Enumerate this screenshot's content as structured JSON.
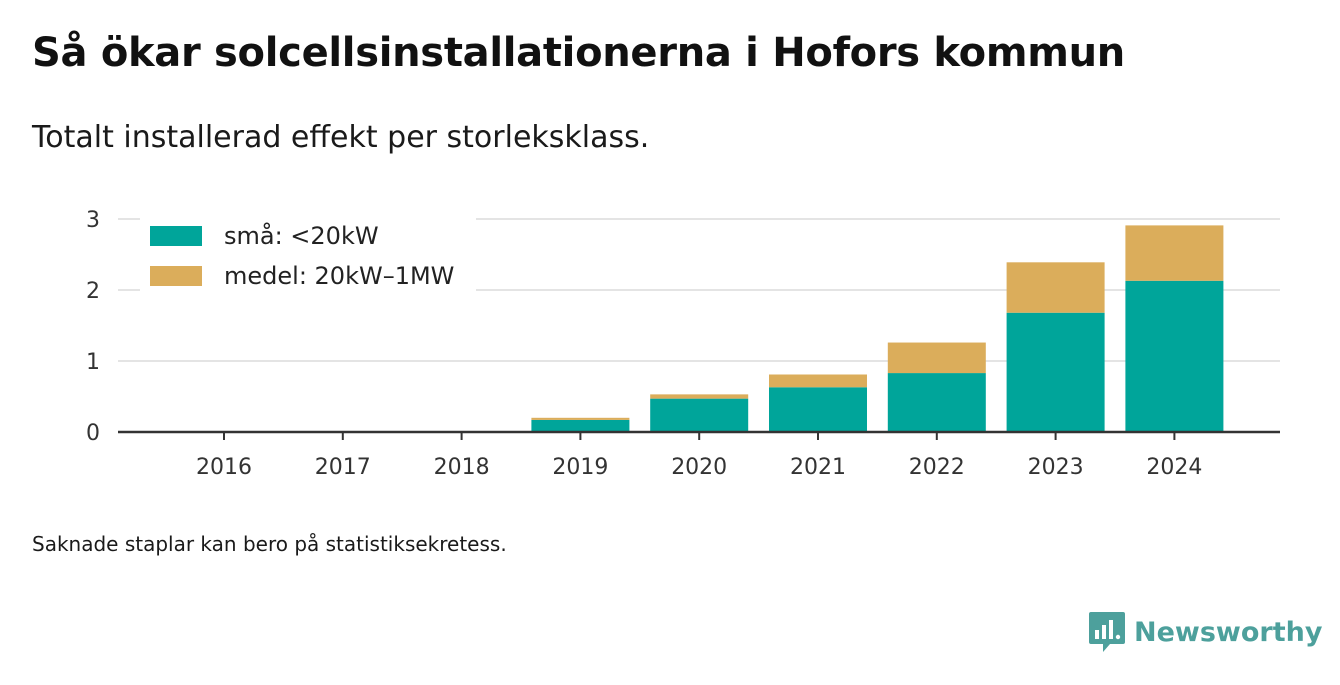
{
  "title": "Så ökar solcellsinstallationerna i Hofors kommun",
  "subtitle": "Totalt installerad effekt per storleksklass.",
  "note": "Saknade staplar kan bero på statistiksekretess.",
  "brand": {
    "name": "Newsworthy",
    "icon": "newsworthy-logo-icon",
    "color": "#4da09c"
  },
  "chart_data": {
    "type": "bar",
    "stacked": true,
    "categories": [
      "2016",
      "2017",
      "2018",
      "2019",
      "2020",
      "2021",
      "2022",
      "2023",
      "2024"
    ],
    "series": [
      {
        "name": "små: <20kW",
        "color": "#00a59a",
        "values": [
          0,
          0,
          0,
          0.17,
          0.47,
          0.63,
          0.83,
          1.68,
          2.13
        ]
      },
      {
        "name": "medel: 20kW–1MW",
        "color": "#dbad5b",
        "values": [
          0,
          0,
          0,
          0.03,
          0.06,
          0.18,
          0.43,
          0.71,
          0.78
        ]
      }
    ],
    "ylim": [
      0,
      3
    ],
    "yticks": [
      0,
      1,
      2,
      3
    ],
    "grid": true,
    "legend": "top-left"
  }
}
